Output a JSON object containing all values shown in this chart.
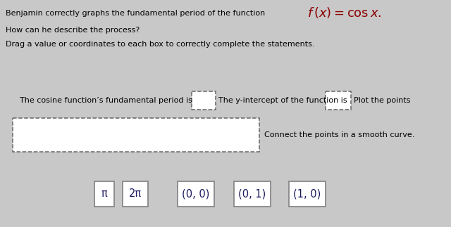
{
  "bg_color": "#c8c8c8",
  "title_text": "Benjamin correctly graphs the fundamental period of the function",
  "line2": "How can he describe the process?",
  "line3": "Drag a value or coordinates to each box to correctly complete the statements.",
  "stmt1_pre": "The cosine function’s fundamental period is",
  "stmt1_post": "The y-intercept of the function is",
  "stmt1_end": "Plot the points",
  "stmt2_right": "Connect the points in a smooth curve.",
  "drag_items": [
    "π",
    "2π",
    "(0, 0)",
    "(0, 1)",
    "(1, 0)"
  ],
  "font_size_main": 8.0,
  "font_size_math": 13,
  "font_size_drag": 10.5
}
